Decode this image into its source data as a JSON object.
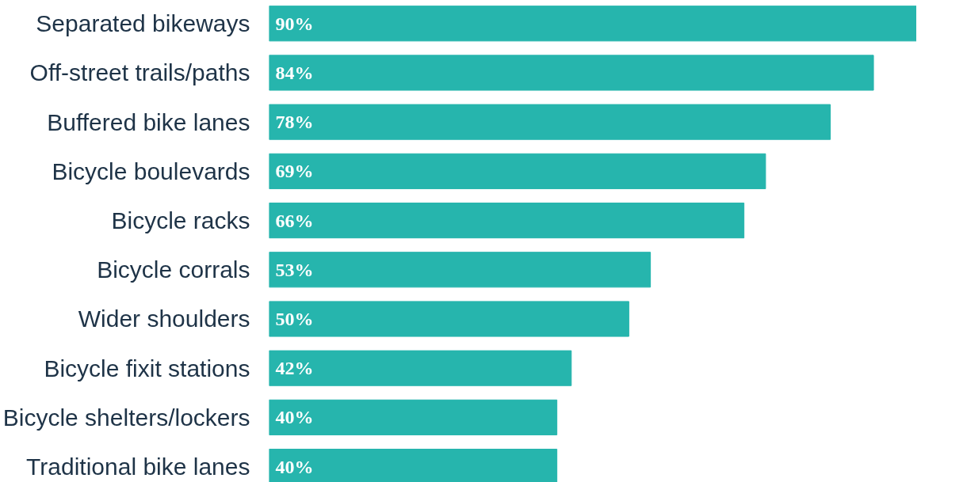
{
  "chart_data": {
    "type": "bar",
    "orientation": "horizontal",
    "tick_labels": "y",
    "color": "#26b5ad",
    "categories": [
      "Separated bikeways",
      "Off-street trails/paths",
      "Buffered bike lanes",
      "Bicycle boulevards",
      "Bicycle racks",
      "Bicycle corrals",
      "Wider shoulders",
      "Bicycle fixit stations",
      "Bicycle shelters/lockers",
      "Traditional bike lanes"
    ],
    "values": [
      90,
      84,
      78,
      69,
      66,
      53,
      50,
      42,
      40,
      40
    ],
    "value_labels": [
      "90%",
      "84%",
      "78%",
      "69%",
      "66%",
      "53%",
      "50%",
      "42%",
      "40%",
      "40%"
    ]
  }
}
